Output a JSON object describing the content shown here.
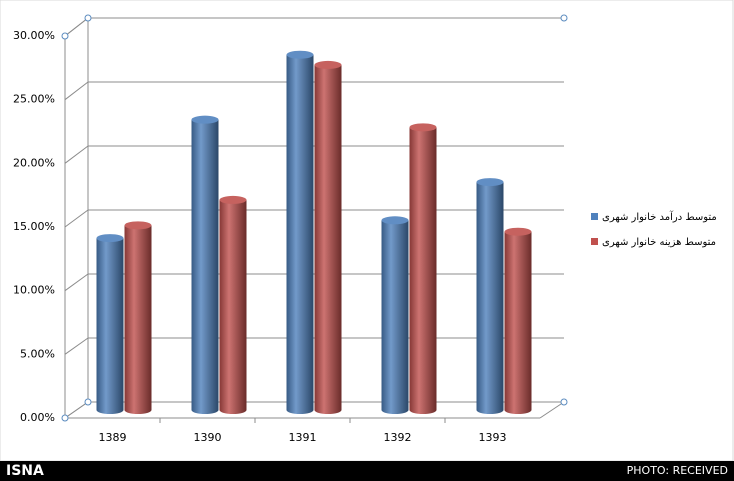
{
  "chart_data": {
    "type": "bar",
    "categories": [
      "1389",
      "1390",
      "1391",
      "1392",
      "1393"
    ],
    "series": [
      {
        "name": "متوسط درآمد خانوار شهری",
        "color": "#4f81bd",
        "values": [
          13.5,
          22.8,
          27.9,
          14.9,
          17.9
        ]
      },
      {
        "name": "متوسط هزینه خانوار شهری",
        "color": "#c0504d",
        "values": [
          14.5,
          16.5,
          27.1,
          22.2,
          14.0
        ]
      }
    ],
    "ylim": [
      0,
      30
    ],
    "yticks": [
      {
        "value": 0,
        "label": "0.00%"
      },
      {
        "value": 5,
        "label": "5.00%"
      },
      {
        "value": 10,
        "label": "10.00%"
      },
      {
        "value": 15,
        "label": "15.00%"
      },
      {
        "value": 20,
        "label": "20.00%"
      },
      {
        "value": 25,
        "label": "25.00%"
      },
      {
        "value": 30,
        "label": "30.00%"
      }
    ],
    "grid": true,
    "legend": "right"
  },
  "footer": {
    "logo": "ISNA",
    "credit": "PHOTO: RECEIVED"
  }
}
